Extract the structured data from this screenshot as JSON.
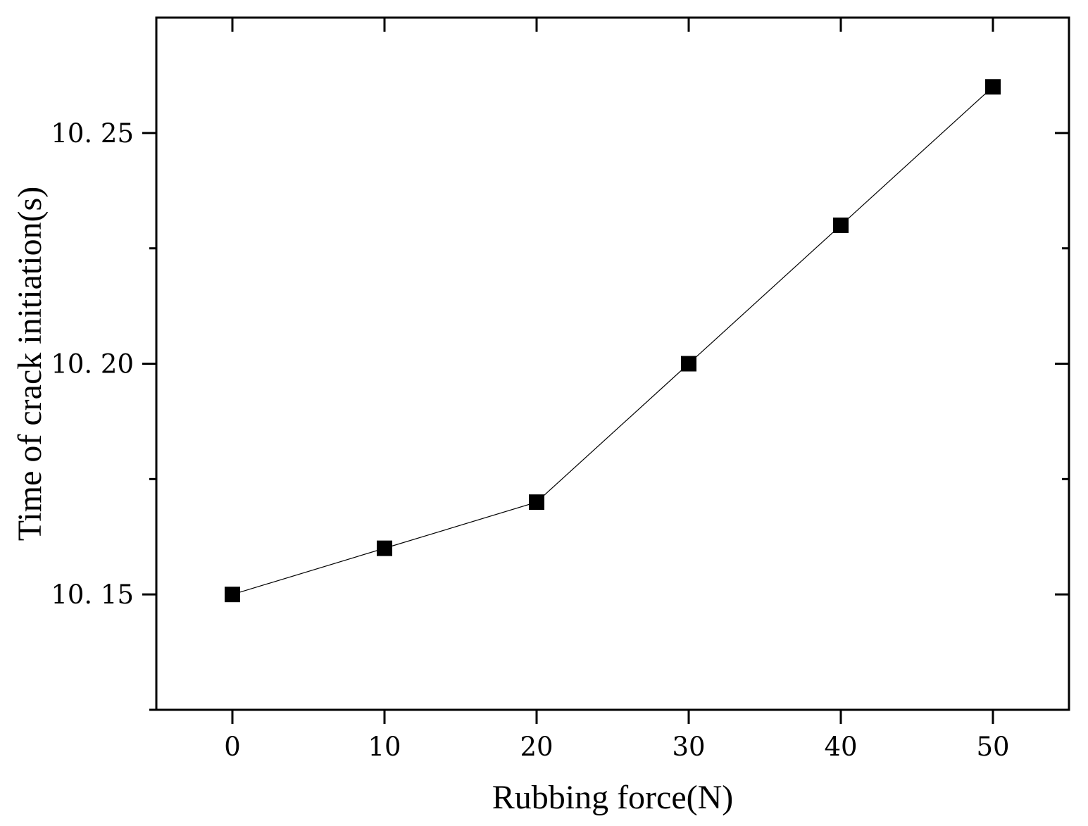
{
  "chart_data": {
    "type": "line",
    "title": "",
    "xlabel": "Rubbing force(N)",
    "ylabel": "Time of crack initiation(s)",
    "xlim": [
      -5,
      55
    ],
    "ylim": [
      10.125,
      10.275
    ],
    "x_ticks": [
      0,
      10,
      20,
      30,
      40,
      50
    ],
    "x_tick_labels": [
      "0",
      "10",
      "20",
      "30",
      "40",
      "50"
    ],
    "y_ticks": [
      10.15,
      10.2,
      10.25
    ],
    "y_tick_labels": [
      "10. 15",
      "10. 20",
      "10. 25"
    ],
    "y_minor_ticks": [
      10.125,
      10.175,
      10.225
    ],
    "grid": false,
    "legend": "none",
    "series": [
      {
        "marker": "square",
        "color": "#000000",
        "x": [
          0,
          10,
          20,
          30,
          40,
          50
        ],
        "y": [
          10.15,
          10.16,
          10.17,
          10.2,
          10.23,
          10.26
        ]
      }
    ]
  }
}
